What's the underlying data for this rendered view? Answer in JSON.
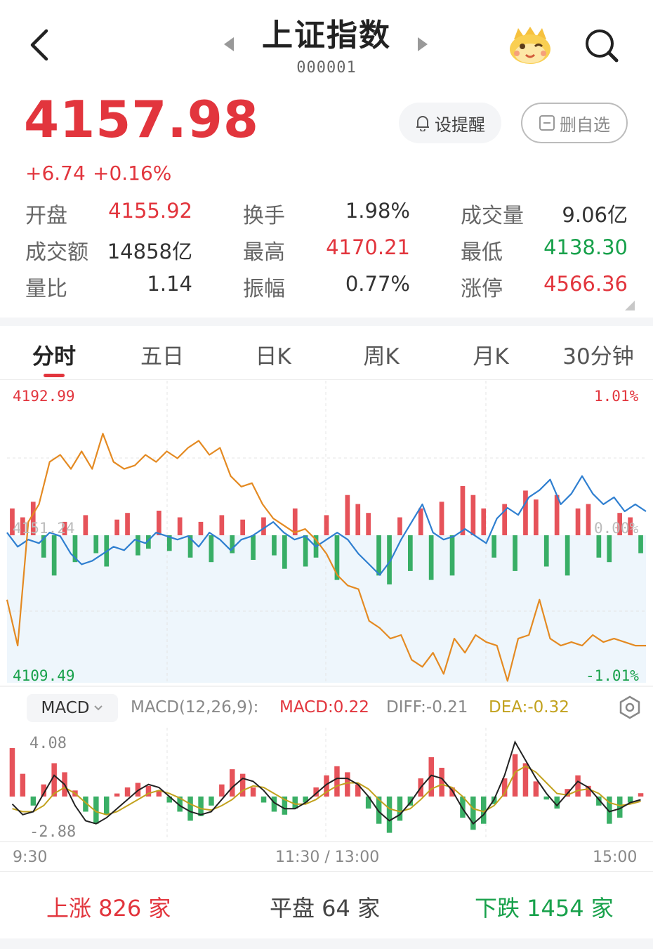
{
  "header": {
    "title": "上证指数",
    "code": "000001"
  },
  "quote": {
    "price": "4157.98",
    "change": "+6.74",
    "change_pct": "+0.16%",
    "remind_label": "设提醒",
    "remove_label": "删自选"
  },
  "stats": [
    {
      "label": "开盘",
      "value": "4155.92",
      "tone": "red"
    },
    {
      "label": "换手",
      "value": "1.98%",
      "tone": "dark"
    },
    {
      "label": "成交量",
      "value": "9.06亿",
      "tone": "dark"
    },
    {
      "label": "成交额",
      "value": "14858亿",
      "tone": "dark"
    },
    {
      "label": "最高",
      "value": "4170.21",
      "tone": "red"
    },
    {
      "label": "最低",
      "value": "4138.30",
      "tone": "green"
    },
    {
      "label": "量比",
      "value": "1.14",
      "tone": "dark"
    },
    {
      "label": "振幅",
      "value": "0.77%",
      "tone": "dark"
    },
    {
      "label": "涨停",
      "value": "4566.36",
      "tone": "red"
    }
  ],
  "tabs": [
    "分时",
    "五日",
    "日K",
    "周K",
    "月K",
    "30分钟"
  ],
  "active_tab": "分时",
  "intraday": {
    "top_price": "4192.99",
    "bottom_price": "4109.49",
    "mid_price": "4151.24",
    "top_pct": "1.01%",
    "bottom_pct": "-1.01%",
    "mid_pct": "0.00%"
  },
  "macd": {
    "indicator": "MACD",
    "params": "MACD(12,26,9):",
    "macd": "MACD:0.22",
    "diff": "DIFF:-0.21",
    "dea": "DEA:-0.32",
    "top": "4.08",
    "bottom": "-2.88"
  },
  "times": {
    "open": "9:30",
    "mid": "11:30 / 13:00",
    "close": "15:00"
  },
  "breadth": {
    "up": "上涨 826 家",
    "flat": "平盘 64 家",
    "down": "下跌 1454 家"
  },
  "colors": {
    "up": "#e2353d",
    "down": "#18a14b",
    "price_line": "#2f7fd0",
    "avg_line": "#e48a22",
    "dea_line": "#c2a21e"
  },
  "chart_data": {
    "type": "line",
    "x_range": [
      "9:30",
      "15:00"
    ],
    "ylim": [
      4109.49,
      4192.99
    ],
    "pct_range": [
      "-1.01%",
      "1.01%"
    ],
    "series": [
      {
        "values": [
          4152,
          4148,
          4150,
          4149,
          4152,
          4151,
          4146,
          4143,
          4144,
          4146,
          4148,
          4147,
          4150,
          4149,
          4152,
          4151,
          4150,
          4151,
          4148,
          4152,
          4150,
          4147,
          4150,
          4151,
          4153,
          4155,
          4152,
          4150,
          4151,
          4148,
          4150,
          4152,
          4150,
          4146,
          4143,
          4140,
          4144,
          4150,
          4155,
          4160,
          4152,
          4150,
          4151,
          4153,
          4151,
          4149,
          4156,
          4159,
          4157,
          4162,
          4164,
          4167,
          4160,
          4163,
          4168,
          4163,
          4160,
          4162,
          4158,
          4160,
          4158
        ]
      },
      {
        "values": [
          4133,
          4120,
          4155,
          4160,
          4172,
          4174,
          4170,
          4175,
          4170,
          4180,
          4172,
          4170,
          4171,
          4174,
          4172,
          4175,
          4173,
          4176,
          4178,
          4174,
          4176,
          4168,
          4165,
          4166,
          4160,
          4156,
          4154,
          4152,
          4153,
          4150,
          4146,
          4140,
          4137,
          4136,
          4127,
          4125,
          4122,
          4123,
          4116,
          4114,
          4118,
          4112,
          4122,
          4118,
          4123,
          4121,
          4120,
          4110,
          4122,
          4123,
          4133,
          4122,
          4120,
          4121,
          4120,
          4123,
          4121,
          4122,
          4121,
          4120,
          4120
        ]
      }
    ],
    "volume": [
      12,
      8,
      15,
      -10,
      -18,
      6,
      -12,
      9,
      -8,
      -14,
      7,
      10,
      -9,
      -6,
      11,
      -7,
      8,
      -10,
      6,
      -12,
      9,
      -8,
      7,
      -11,
      8,
      -9,
      -15,
      12,
      -14,
      -10,
      9,
      -20,
      18,
      14,
      10,
      -18,
      -22,
      8,
      -16,
      12,
      -20,
      15,
      -18,
      22,
      18,
      12,
      -10,
      14,
      -16,
      20,
      16,
      -14,
      18,
      -18,
      12,
      14,
      -10,
      -12,
      10,
      8,
      -8
    ],
    "macd": [
      3.2,
      1.5,
      -0.6,
      0.8,
      2.2,
      1.6,
      0.4,
      -1.0,
      -1.8,
      -1.2,
      0.2,
      0.6,
      0.9,
      0.7,
      0.4,
      -0.4,
      -1.0,
      -1.6,
      -1.3,
      -0.6,
      0.8,
      1.8,
      1.5,
      0.6,
      -0.4,
      -1.0,
      -1.2,
      -0.8,
      -0.4,
      0.6,
      1.4,
      2.0,
      1.6,
      0.8,
      -0.8,
      -1.8,
      -2.4,
      -1.6,
      -0.6,
      1.2,
      2.6,
      1.9,
      0.6,
      -1.4,
      -2.2,
      -1.8,
      -0.5,
      1.2,
      2.8,
      2.2,
      1.0,
      -0.2,
      -0.8,
      0.5,
      1.4,
      0.7,
      -0.6,
      -1.8,
      -1.4,
      -0.4,
      0.22
    ],
    "diff": [
      -0.5,
      -1.2,
      -1.0,
      0.2,
      1.4,
      0.8,
      -0.6,
      -1.6,
      -1.8,
      -1.4,
      -0.8,
      -0.2,
      0.4,
      0.8,
      0.6,
      0.0,
      -0.6,
      -1.0,
      -1.2,
      -1.0,
      -0.2,
      0.6,
      1.2,
      1.0,
      0.4,
      -0.4,
      -0.8,
      -0.8,
      -0.4,
      0.2,
      0.8,
      1.2,
      1.2,
      0.8,
      0.0,
      -1.0,
      -1.6,
      -1.2,
      -0.4,
      0.6,
      1.4,
      1.2,
      0.4,
      -0.8,
      -1.8,
      -1.2,
      -0.2,
      1.4,
      3.6,
      2.4,
      1.2,
      0.2,
      -0.6,
      0.2,
      1.0,
      0.6,
      -0.2,
      -1.0,
      -0.8,
      -0.4,
      -0.21
    ],
    "dea": [
      -0.8,
      -1.0,
      -1.0,
      -0.6,
      0.2,
      0.6,
      0.2,
      -0.4,
      -1.0,
      -1.2,
      -1.0,
      -0.6,
      -0.2,
      0.2,
      0.4,
      0.2,
      -0.1,
      -0.5,
      -0.8,
      -0.9,
      -0.6,
      -0.2,
      0.4,
      0.7,
      0.6,
      0.2,
      -0.2,
      -0.5,
      -0.5,
      -0.2,
      0.3,
      0.7,
      0.9,
      0.9,
      0.5,
      -0.2,
      -0.8,
      -1.0,
      -0.8,
      -0.2,
      0.5,
      0.8,
      0.6,
      0.0,
      -0.8,
      -1.0,
      -0.6,
      0.2,
      1.6,
      2.0,
      1.6,
      0.9,
      0.2,
      0.1,
      0.4,
      0.5,
      0.2,
      -0.4,
      -0.6,
      -0.5,
      -0.32
    ],
    "macd_ylim": [
      -2.88,
      4.08
    ]
  }
}
